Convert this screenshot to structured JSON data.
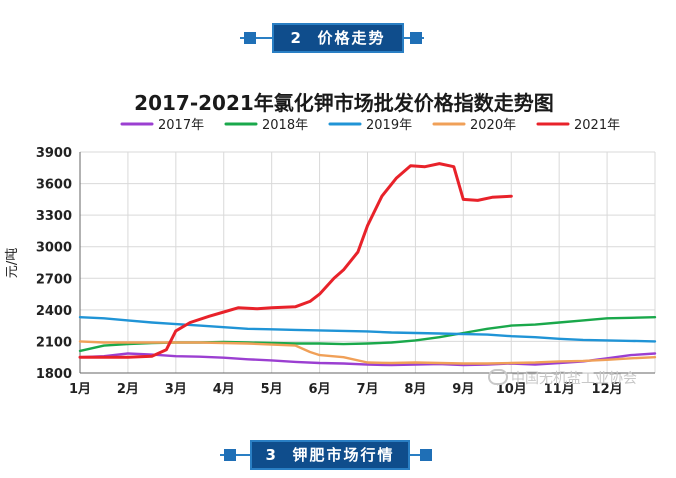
{
  "banners": {
    "top": {
      "number": "2",
      "label": "价格走势"
    },
    "bottom": {
      "number": "3",
      "label": "钾肥市场行情"
    }
  },
  "watermark": "中国无机盐工业协会",
  "chart_data": {
    "type": "line",
    "title": "2017-2021年氯化钾市场批发价格指数走势图",
    "ylabel": "元/吨",
    "xlabel": "",
    "ylim": [
      1800,
      3900
    ],
    "yticks": [
      1800,
      2100,
      2400,
      2700,
      3000,
      3300,
      3600,
      3900
    ],
    "categories": [
      "1月",
      "2月",
      "3月",
      "4月",
      "5月",
      "6月",
      "7月",
      "8月",
      "9月",
      "10月",
      "11月",
      "12月"
    ],
    "grid": true,
    "legend_position": "top",
    "series": [
      {
        "name": "2017年",
        "color": "#9b3fd1",
        "x": [
          1,
          1.5,
          2,
          2.5,
          3,
          3.5,
          4,
          4.5,
          5,
          5.5,
          6,
          6.5,
          7,
          7.5,
          8,
          8.5,
          9,
          9.5,
          10,
          10.5,
          11,
          11.5,
          12,
          12.5,
          13
        ],
        "values": [
          1950,
          1960,
          1985,
          1975,
          1960,
          1955,
          1945,
          1930,
          1920,
          1905,
          1895,
          1890,
          1880,
          1875,
          1880,
          1885,
          1875,
          1880,
          1890,
          1880,
          1895,
          1910,
          1940,
          1970,
          1985
        ]
      },
      {
        "name": "2018年",
        "color": "#1aa84b",
        "x": [
          1,
          1.5,
          2,
          2.5,
          3,
          3.5,
          4,
          4.5,
          5,
          5.5,
          6,
          6.5,
          7,
          7.5,
          8,
          8.5,
          9,
          9.5,
          10,
          10.5,
          11,
          11.5,
          12,
          12.5,
          13
        ],
        "values": [
          2010,
          2060,
          2075,
          2085,
          2090,
          2090,
          2095,
          2090,
          2085,
          2080,
          2080,
          2075,
          2080,
          2090,
          2110,
          2140,
          2180,
          2220,
          2250,
          2260,
          2280,
          2300,
          2320,
          2325,
          2330
        ]
      },
      {
        "name": "2019年",
        "color": "#2094d6",
        "x": [
          1,
          1.5,
          2,
          2.5,
          3,
          3.5,
          4,
          4.5,
          5,
          5.5,
          6,
          6.5,
          7,
          7.5,
          8,
          8.5,
          9,
          9.5,
          10,
          10.5,
          11,
          11.5,
          12,
          12.5,
          13
        ],
        "values": [
          2330,
          2320,
          2300,
          2280,
          2265,
          2250,
          2235,
          2220,
          2215,
          2210,
          2205,
          2200,
          2195,
          2185,
          2180,
          2175,
          2170,
          2165,
          2150,
          2140,
          2125,
          2115,
          2110,
          2105,
          2100
        ]
      },
      {
        "name": "2020年",
        "color": "#f0a058",
        "x": [
          1,
          1.5,
          2,
          2.5,
          3,
          3.5,
          4,
          4.5,
          5,
          5.5,
          5.8,
          6,
          6.5,
          7,
          7.5,
          8,
          8.5,
          9,
          9.5,
          10,
          10.5,
          11,
          11.5,
          12,
          12.5,
          13
        ],
        "values": [
          2100,
          2090,
          2090,
          2090,
          2090,
          2090,
          2085,
          2080,
          2070,
          2060,
          2000,
          1970,
          1950,
          1900,
          1895,
          1900,
          1895,
          1890,
          1890,
          1895,
          1900,
          1910,
          1915,
          1925,
          1940,
          1950
        ]
      },
      {
        "name": "2021年",
        "color": "#e8222a",
        "x": [
          1,
          1.5,
          2,
          2.5,
          2.8,
          3,
          3.3,
          3.7,
          4,
          4.3,
          4.7,
          5,
          5.5,
          5.8,
          6,
          6.3,
          6.5,
          6.8,
          7,
          7.3,
          7.6,
          7.9,
          8.2,
          8.5,
          8.8,
          9,
          9.3,
          9.6,
          10
        ],
        "values": [
          1950,
          1950,
          1950,
          1960,
          2020,
          2200,
          2280,
          2340,
          2380,
          2420,
          2410,
          2420,
          2430,
          2480,
          2550,
          2700,
          2780,
          2950,
          3200,
          3480,
          3650,
          3770,
          3760,
          3790,
          3760,
          3450,
          3440,
          3470,
          3480
        ]
      }
    ]
  }
}
